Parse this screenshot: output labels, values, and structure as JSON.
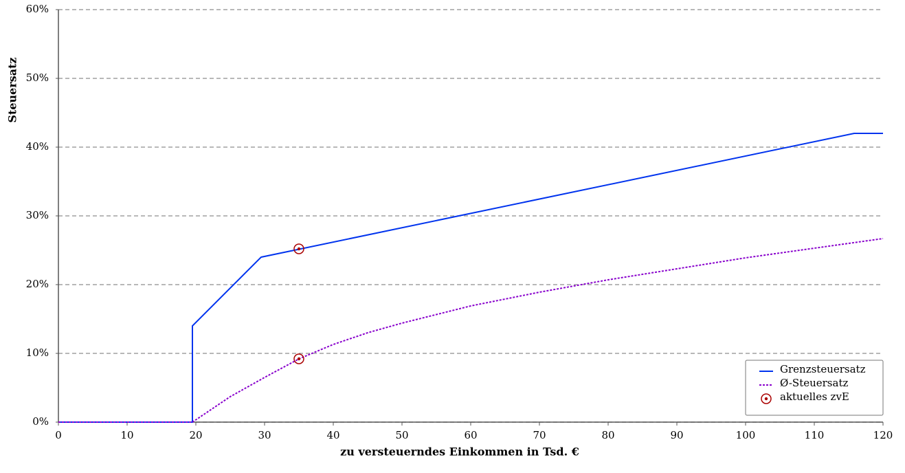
{
  "chart_data": {
    "type": "line",
    "xlabel": "zu versteuerndes Einkommen in Tsd. €",
    "ylabel": "Steuersatz",
    "xlim": [
      0,
      120
    ],
    "xticks": [
      0,
      10,
      20,
      30,
      40,
      50,
      60,
      70,
      80,
      90,
      100,
      110,
      120
    ],
    "ylim": [
      0,
      60
    ],
    "yticks": [
      {
        "value": 0,
        "label": "0%"
      },
      {
        "value": 10,
        "label": "10%"
      },
      {
        "value": 20,
        "label": "20%"
      },
      {
        "value": 30,
        "label": "30%"
      },
      {
        "value": 40,
        "label": "40%"
      },
      {
        "value": 50,
        "label": "50%"
      },
      {
        "value": 60,
        "label": "60%"
      }
    ],
    "grid": true,
    "legend": "lower right",
    "series": [
      {
        "name": "Grenzsteuersatz",
        "color": "#0033ee",
        "kind": "line",
        "linestyle": "solid",
        "x": [
          0,
          19.5,
          19.5,
          29.5,
          115.8,
          120
        ],
        "values": [
          0,
          0,
          14,
          24,
          42,
          42
        ]
      },
      {
        "name": "Ø-Steuersatz",
        "color": "#8800cc",
        "kind": "line",
        "linestyle": "dotted",
        "x": [
          0,
          19.5,
          25,
          30,
          35,
          40,
          45,
          50,
          60,
          70,
          80,
          90,
          100,
          110,
          120
        ],
        "values": [
          0,
          0,
          3.7,
          6.5,
          9.2,
          11.3,
          13.0,
          14.4,
          16.9,
          18.9,
          20.7,
          22.3,
          23.9,
          25.3,
          26.7
        ]
      },
      {
        "name": "aktuelles zvE",
        "color": "#aa0000",
        "kind": "scatter",
        "linestyle": "none",
        "x": [
          35,
          35
        ],
        "values": [
          25.2,
          9.2
        ]
      }
    ]
  }
}
